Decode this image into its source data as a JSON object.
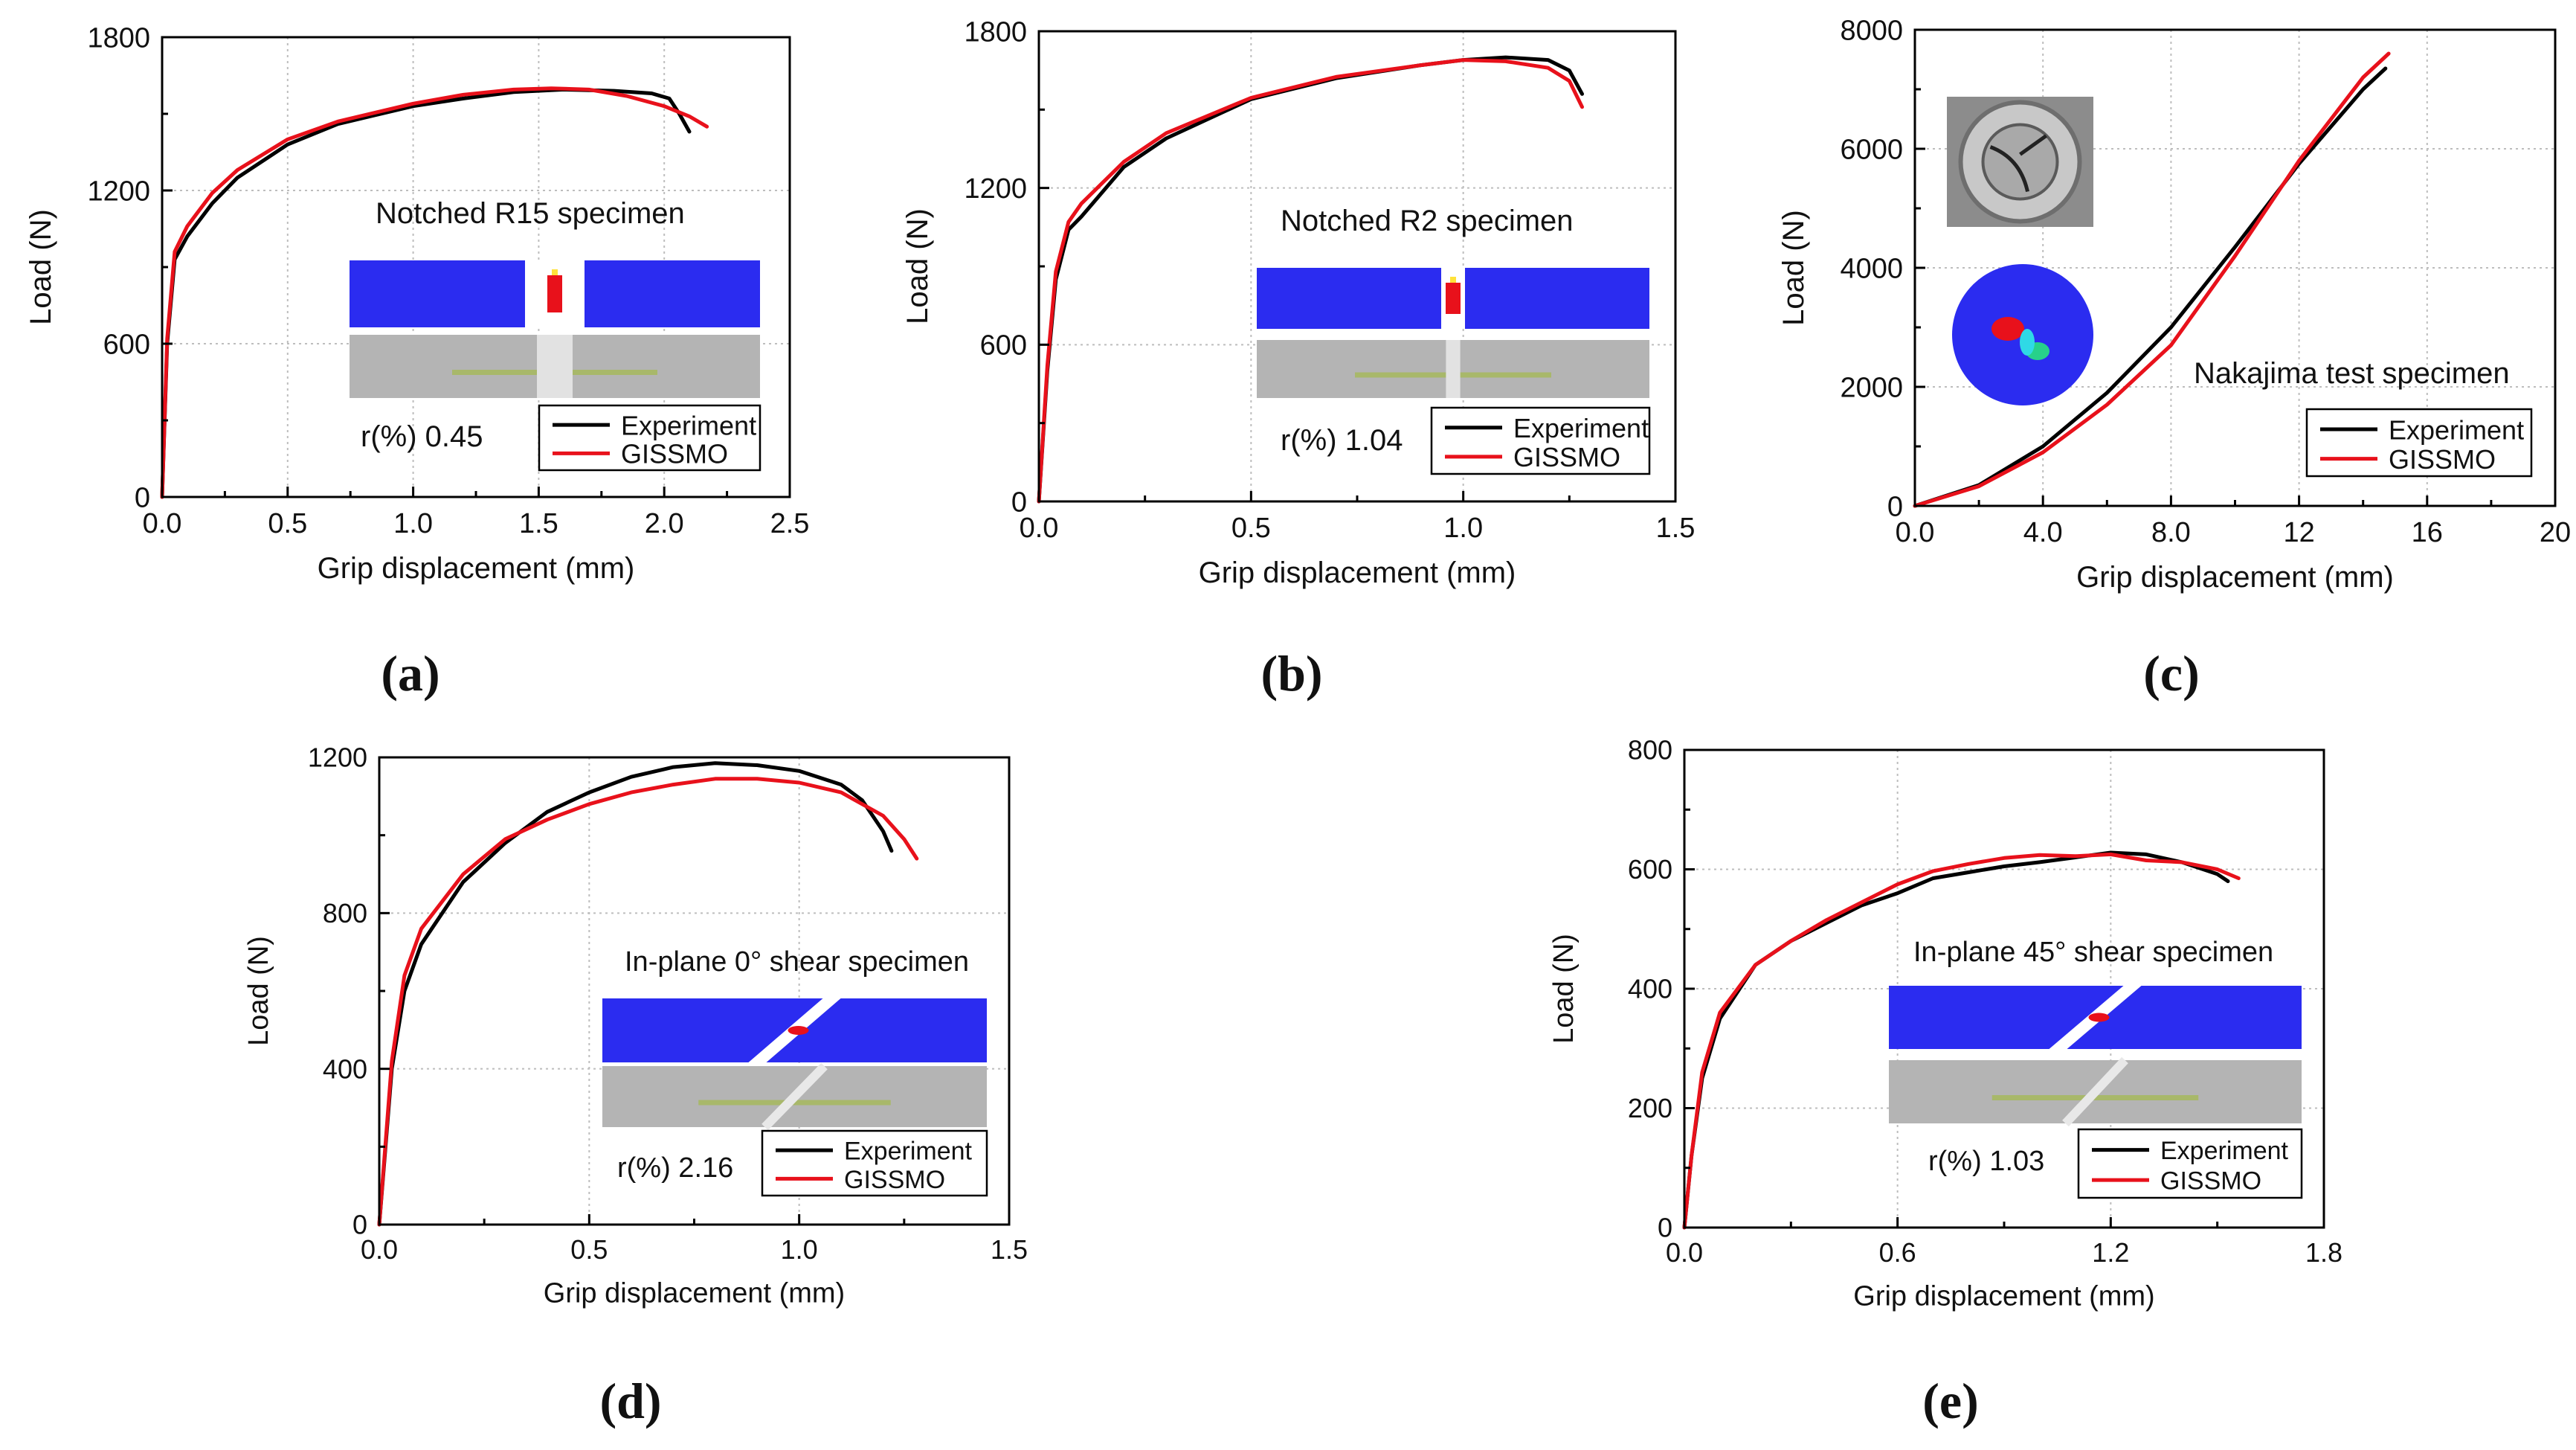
{
  "colors": {
    "experiment": "#000000",
    "gissmo": "#e8111b",
    "fem_blue": "#2b2cf0",
    "frame": "#000000",
    "grid": "#bdbdbd",
    "photo": "#b4b4b4"
  },
  "chart_data": [
    {
      "type": "line",
      "panel_label": "(a)",
      "title": "Notched R15 specimen",
      "xlabel": "Grip displacement (mm)",
      "ylabel": "Load (N)",
      "xlim": [
        0,
        2.5
      ],
      "ylim": [
        0,
        1800
      ],
      "xticks": [
        "0.0",
        "0.5",
        "1.0",
        "1.5",
        "2.0",
        "2.5"
      ],
      "yticks": [
        "0",
        "600",
        "1200",
        "1800"
      ],
      "grid": true,
      "annotation": "r(%) 0.45",
      "legend": [
        "Experiment",
        "GISSMO"
      ],
      "series": [
        {
          "name": "Experiment",
          "x": [
            0,
            0.02,
            0.05,
            0.1,
            0.2,
            0.3,
            0.5,
            0.7,
            1.0,
            1.2,
            1.4,
            1.6,
            1.8,
            1.95,
            2.02,
            2.06,
            2.1
          ],
          "y": [
            0,
            600,
            930,
            1020,
            1150,
            1250,
            1380,
            1460,
            1530,
            1560,
            1585,
            1595,
            1590,
            1580,
            1560,
            1500,
            1430
          ]
        },
        {
          "name": "GISSMO",
          "x": [
            0,
            0.02,
            0.05,
            0.1,
            0.2,
            0.3,
            0.5,
            0.7,
            1.0,
            1.2,
            1.4,
            1.55,
            1.7,
            1.85,
            2.0,
            2.1,
            2.17
          ],
          "y": [
            0,
            620,
            960,
            1060,
            1190,
            1280,
            1400,
            1470,
            1540,
            1575,
            1595,
            1600,
            1595,
            1570,
            1530,
            1490,
            1450
          ]
        }
      ]
    },
    {
      "type": "line",
      "panel_label": "(b)",
      "title": "Notched R2 specimen",
      "xlabel": "Grip displacement (mm)",
      "ylabel": "Load (N)",
      "xlim": [
        0,
        1.5
      ],
      "ylim": [
        0,
        1800
      ],
      "xticks": [
        "0.0",
        "0.5",
        "1.0",
        "1.5"
      ],
      "yticks": [
        "0",
        "600",
        "1200",
        "1800"
      ],
      "grid": true,
      "annotation": "r(%) 1.04",
      "legend": [
        "Experiment",
        "GISSMO"
      ],
      "series": [
        {
          "name": "Experiment",
          "x": [
            0,
            0.02,
            0.04,
            0.07,
            0.1,
            0.2,
            0.3,
            0.5,
            0.7,
            0.9,
            1.0,
            1.1,
            1.2,
            1.25,
            1.28
          ],
          "y": [
            0,
            500,
            850,
            1040,
            1090,
            1280,
            1390,
            1540,
            1620,
            1670,
            1690,
            1700,
            1690,
            1650,
            1560
          ]
        },
        {
          "name": "GISSMO",
          "x": [
            0,
            0.02,
            0.04,
            0.07,
            0.1,
            0.2,
            0.3,
            0.5,
            0.7,
            0.9,
            1.0,
            1.1,
            1.2,
            1.25,
            1.28
          ],
          "y": [
            0,
            520,
            880,
            1070,
            1140,
            1300,
            1410,
            1545,
            1625,
            1670,
            1690,
            1685,
            1660,
            1610,
            1510
          ]
        }
      ]
    },
    {
      "type": "line",
      "panel_label": "(c)",
      "title": "Nakajima test specimen",
      "xlabel": "Grip displacement (mm)",
      "ylabel": "Load (N)",
      "xlim": [
        0,
        20
      ],
      "ylim": [
        0,
        8000
      ],
      "xticks": [
        "0.0",
        "4.0",
        "8.0",
        "12",
        "16",
        "20"
      ],
      "yticks": [
        "0",
        "2000",
        "4000",
        "6000",
        "8000"
      ],
      "grid": true,
      "legend": [
        "Experiment",
        "GISSMO"
      ],
      "series": [
        {
          "name": "Experiment",
          "x": [
            0,
            2,
            4,
            6,
            8,
            10,
            12,
            14,
            14.7
          ],
          "y": [
            0,
            350,
            1000,
            1900,
            3000,
            4350,
            5750,
            7000,
            7350
          ]
        },
        {
          "name": "GISSMO",
          "x": [
            0,
            2,
            4,
            6,
            8,
            10,
            12,
            14,
            14.8
          ],
          "y": [
            0,
            330,
            900,
            1700,
            2700,
            4200,
            5800,
            7200,
            7600
          ]
        }
      ]
    },
    {
      "type": "line",
      "panel_label": "(d)",
      "title": "In-plane 0° shear specimen",
      "xlabel": "Grip displacement (mm)",
      "ylabel": "Load (N)",
      "xlim": [
        0,
        1.5
      ],
      "ylim": [
        0,
        1200
      ],
      "xticks": [
        "0.0",
        "0.5",
        "1.0",
        "1.5"
      ],
      "yticks": [
        "0",
        "400",
        "800",
        "1200"
      ],
      "grid": true,
      "annotation": "r(%) 2.16",
      "legend": [
        "Experiment",
        "GISSMO"
      ],
      "series": [
        {
          "name": "Experiment",
          "x": [
            0,
            0.03,
            0.06,
            0.1,
            0.2,
            0.3,
            0.4,
            0.5,
            0.6,
            0.7,
            0.8,
            0.9,
            1.0,
            1.1,
            1.15,
            1.2,
            1.22
          ],
          "y": [
            0,
            400,
            600,
            720,
            880,
            980,
            1060,
            1110,
            1150,
            1175,
            1185,
            1180,
            1165,
            1130,
            1090,
            1010,
            960
          ]
        },
        {
          "name": "GISSMO",
          "x": [
            0,
            0.03,
            0.06,
            0.1,
            0.2,
            0.3,
            0.4,
            0.5,
            0.6,
            0.7,
            0.8,
            0.9,
            1.0,
            1.1,
            1.2,
            1.25,
            1.28
          ],
          "y": [
            0,
            420,
            640,
            760,
            900,
            990,
            1040,
            1080,
            1110,
            1130,
            1145,
            1145,
            1135,
            1110,
            1050,
            990,
            940
          ]
        }
      ]
    },
    {
      "type": "line",
      "panel_label": "(e)",
      "title": "In-plane 45° shear specimen",
      "xlabel": "Grip displacement (mm)",
      "ylabel": "Load (N)",
      "xlim": [
        0,
        1.8
      ],
      "ylim": [
        0,
        800
      ],
      "xticks": [
        "0.0",
        "0.6",
        "1.2",
        "1.8"
      ],
      "yticks": [
        "0",
        "200",
        "400",
        "600",
        "800"
      ],
      "grid": true,
      "annotation": "r(%) 1.03",
      "legend": [
        "Experiment",
        "GISSMO"
      ],
      "series": [
        {
          "name": "Experiment",
          "x": [
            0,
            0.02,
            0.05,
            0.1,
            0.2,
            0.3,
            0.4,
            0.5,
            0.6,
            0.7,
            0.8,
            0.9,
            1.0,
            1.1,
            1.2,
            1.3,
            1.4,
            1.5,
            1.53
          ],
          "y": [
            0,
            120,
            250,
            350,
            440,
            480,
            510,
            540,
            560,
            585,
            595,
            605,
            612,
            620,
            628,
            625,
            612,
            592,
            580
          ]
        },
        {
          "name": "GISSMO",
          "x": [
            0,
            0.02,
            0.05,
            0.1,
            0.2,
            0.3,
            0.4,
            0.5,
            0.6,
            0.7,
            0.8,
            0.9,
            1.0,
            1.1,
            1.2,
            1.3,
            1.4,
            1.5,
            1.56
          ],
          "y": [
            0,
            120,
            260,
            360,
            440,
            480,
            515,
            545,
            575,
            597,
            609,
            619,
            624,
            622,
            625,
            615,
            612,
            600,
            585
          ]
        }
      ]
    }
  ]
}
